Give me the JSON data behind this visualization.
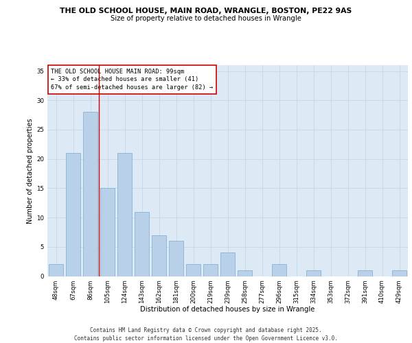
{
  "title_line1": "THE OLD SCHOOL HOUSE, MAIN ROAD, WRANGLE, BOSTON, PE22 9AS",
  "title_line2": "Size of property relative to detached houses in Wrangle",
  "xlabel": "Distribution of detached houses by size in Wrangle",
  "ylabel": "Number of detached properties",
  "categories": [
    "48sqm",
    "67sqm",
    "86sqm",
    "105sqm",
    "124sqm",
    "143sqm",
    "162sqm",
    "181sqm",
    "200sqm",
    "219sqm",
    "239sqm",
    "258sqm",
    "277sqm",
    "296sqm",
    "315sqm",
    "334sqm",
    "353sqm",
    "372sqm",
    "391sqm",
    "410sqm",
    "429sqm"
  ],
  "values": [
    2,
    21,
    28,
    15,
    21,
    11,
    7,
    6,
    2,
    2,
    4,
    1,
    0,
    2,
    0,
    1,
    0,
    0,
    1,
    0,
    1
  ],
  "bar_color": "#b8d0e8",
  "bar_edge_color": "#7aaad0",
  "grid_color": "#c8daea",
  "background_color": "#ddeaf5",
  "annotation_text": "THE OLD SCHOOL HOUSE MAIN ROAD: 99sqm\n← 33% of detached houses are smaller (41)\n67% of semi-detached houses are larger (82) →",
  "annotation_box_color": "#ffffff",
  "annotation_border_color": "#cc0000",
  "vline_color": "#cc0000",
  "ylim": [
    0,
    36
  ],
  "yticks": [
    0,
    5,
    10,
    15,
    20,
    25,
    30,
    35
  ],
  "footer_text": "Contains HM Land Registry data © Crown copyright and database right 2025.\nContains public sector information licensed under the Open Government Licence v3.0.",
  "title_fontsize": 7.8,
  "subtitle_fontsize": 7.2,
  "xlabel_fontsize": 7.2,
  "ylabel_fontsize": 7.0,
  "tick_fontsize": 6.2,
  "annotation_fontsize": 6.2,
  "footer_fontsize": 5.5
}
